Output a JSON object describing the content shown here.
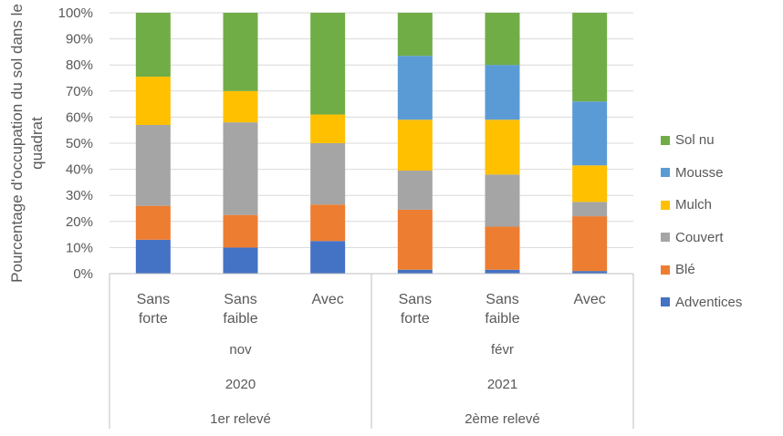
{
  "chart_data": {
    "type": "bar",
    "stacked": true,
    "percent_stacked": true,
    "ylabel": "Pourcentage d'occupation du sol dans le quadrat",
    "ylim": [
      0,
      100
    ],
    "yticks": [
      "0%",
      "10%",
      "20%",
      "30%",
      "40%",
      "50%",
      "60%",
      "70%",
      "80%",
      "90%",
      "100%"
    ],
    "categories": [
      {
        "lines": [
          "Sans",
          "forte"
        ]
      },
      {
        "lines": [
          "Sans",
          "faible"
        ]
      },
      {
        "lines": [
          "Avec"
        ]
      },
      {
        "lines": [
          "Sans",
          "forte"
        ]
      },
      {
        "lines": [
          "Sans",
          "faible"
        ]
      },
      {
        "lines": [
          "Avec"
        ]
      }
    ],
    "groups": [
      {
        "month": "nov",
        "year": "2020",
        "reading": "1er relevé",
        "size": 3
      },
      {
        "month": "févr",
        "year": "2021",
        "reading": "2ème relevé",
        "size": 3
      }
    ],
    "series": [
      {
        "name": "Adventices",
        "color": "#4472C4",
        "values": [
          13,
          10,
          12.5,
          1.5,
          1.5,
          1
        ]
      },
      {
        "name": "Blé",
        "color": "#ED7D31",
        "values": [
          13,
          12.5,
          14,
          23,
          16.5,
          21
        ]
      },
      {
        "name": "Couvert",
        "color": "#A5A5A5",
        "values": [
          31,
          35.5,
          23.5,
          15,
          20,
          5.5
        ]
      },
      {
        "name": "Mulch",
        "color": "#FFC000",
        "values": [
          18.5,
          12,
          11,
          19.5,
          21,
          14
        ]
      },
      {
        "name": "Mousse",
        "color": "#5B9BD5",
        "values": [
          0,
          0,
          0,
          24.5,
          21,
          24.5
        ]
      },
      {
        "name": "Sol nu",
        "color": "#70AD47",
        "values": [
          24.5,
          30,
          39,
          16.5,
          20,
          34
        ]
      }
    ],
    "legend_position": "right",
    "grid": true
  }
}
